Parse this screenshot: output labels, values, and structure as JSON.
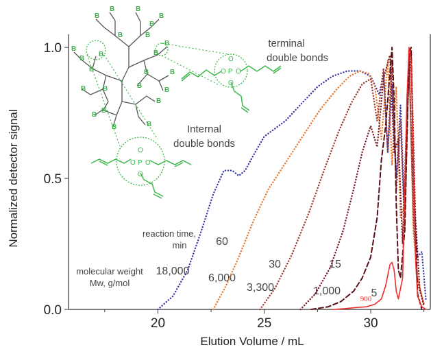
{
  "chart_data": {
    "type": "line",
    "xlabel": "Elution Volume / mL",
    "ylabel": "Normalized detector signal",
    "xlim": [
      15.8,
      32.8
    ],
    "ylim": [
      0,
      1.05
    ],
    "x_ticks": [
      "20",
      "25",
      "30"
    ],
    "y_ticks": [
      "0.0",
      "0.5",
      "1.0"
    ],
    "grid": false,
    "series": [
      {
        "color": "#3a3aa8",
        "style": "dotted",
        "x": [
          20.0,
          20.7,
          21.4,
          22.0,
          22.6,
          23.1,
          23.5,
          23.8,
          24.1,
          24.5,
          25.0,
          25.5,
          26.0,
          26.8,
          27.5,
          28.2,
          28.9,
          29.5,
          30.0,
          30.4,
          30.6,
          30.8,
          31.0,
          31.2,
          31.4,
          31.6,
          31.8,
          32.0,
          32.2,
          32.4,
          32.6
        ],
        "y": [
          0.0,
          0.05,
          0.15,
          0.29,
          0.44,
          0.53,
          0.53,
          0.51,
          0.53,
          0.59,
          0.66,
          0.69,
          0.72,
          0.79,
          0.85,
          0.89,
          0.91,
          0.91,
          0.89,
          0.82,
          0.9,
          0.6,
          0.86,
          0.5,
          0.78,
          0.35,
          0.95,
          0.4,
          0.2,
          0.22,
          0.03
        ]
      },
      {
        "color": "#e8782d",
        "style": "dotted",
        "x": [
          22.6,
          23.2,
          23.8,
          24.5,
          25.2,
          26.0,
          26.8,
          27.6,
          28.4,
          29.0,
          29.5,
          29.9,
          30.2,
          30.5,
          30.8,
          31.0,
          31.2,
          31.4,
          31.6,
          31.8,
          32.0,
          32.2,
          32.5
        ],
        "y": [
          0.0,
          0.09,
          0.2,
          0.34,
          0.46,
          0.56,
          0.66,
          0.76,
          0.84,
          0.89,
          0.91,
          0.9,
          0.85,
          0.65,
          0.95,
          0.55,
          0.85,
          0.35,
          0.4,
          0.99,
          0.3,
          0.12,
          0.02
        ]
      },
      {
        "color": "#9a3a2e",
        "style": "dotted",
        "x": [
          24.8,
          25.5,
          26.3,
          27.1,
          27.8,
          28.5,
          29.1,
          29.6,
          30.0,
          30.3,
          30.6,
          30.8,
          31.0,
          31.2,
          31.4,
          31.6,
          31.8,
          32.0,
          32.2,
          32.5
        ],
        "y": [
          0.0,
          0.08,
          0.21,
          0.37,
          0.53,
          0.68,
          0.79,
          0.86,
          0.88,
          0.72,
          0.92,
          0.6,
          0.95,
          0.45,
          0.72,
          0.3,
          0.99,
          0.35,
          0.1,
          0.02
        ]
      },
      {
        "color": "#7a1a22",
        "style": "dotted",
        "x": [
          26.7,
          27.4,
          28.1,
          28.7,
          29.2,
          29.6,
          30.0,
          30.3,
          30.6,
          30.9,
          31.1,
          31.3,
          31.5,
          31.7,
          31.9,
          32.1,
          32.3,
          32.5
        ],
        "y": [
          0.0,
          0.06,
          0.16,
          0.3,
          0.46,
          0.6,
          0.7,
          0.62,
          0.88,
          0.97,
          0.6,
          0.65,
          0.25,
          0.75,
          0.98,
          0.35,
          0.08,
          0.01
        ]
      },
      {
        "color": "#5a0f14",
        "style": "dashed",
        "x": [
          27.2,
          28.0,
          28.6,
          29.2,
          29.6,
          30.0,
          30.3,
          30.5,
          30.7,
          30.9,
          31.0,
          31.1,
          31.2,
          31.3,
          31.4,
          31.6,
          31.8,
          31.9,
          32.0,
          32.2,
          32.4
        ],
        "y": [
          0.0,
          0.01,
          0.03,
          0.07,
          0.12,
          0.2,
          0.35,
          0.57,
          0.7,
          0.9,
          1.0,
          0.8,
          0.4,
          0.15,
          0.12,
          0.3,
          0.98,
          1.0,
          0.55,
          0.06,
          0.0
        ]
      },
      {
        "color": "#ee2c2c",
        "style": "solid",
        "x": [
          28.2,
          28.8,
          29.3,
          29.8,
          30.2,
          30.5,
          30.7,
          30.9,
          31.0,
          31.1,
          31.2,
          31.3,
          31.5,
          31.6,
          31.7,
          31.8,
          31.9,
          32.0,
          32.1,
          32.2,
          32.4,
          32.6
        ],
        "y": [
          0.0,
          0.003,
          0.007,
          0.01,
          0.02,
          0.04,
          0.09,
          0.17,
          0.18,
          0.15,
          0.07,
          0.04,
          0.12,
          0.45,
          0.8,
          1.0,
          0.95,
          0.6,
          0.2,
          0.05,
          0.01,
          0.0
        ]
      }
    ],
    "annotations": {
      "reaction_time_header": [
        "reaction time,",
        "min"
      ],
      "reaction_times": [
        "60",
        "30",
        "15",
        "5"
      ],
      "mw_header": [
        "molecular weight",
        "Mw, g/mol"
      ],
      "mw_values": [
        "18,000",
        "6,000",
        "3,300",
        "1,000",
        "900"
      ],
      "terminal_label": [
        "terminal",
        "double bonds"
      ],
      "internal_label": [
        "Internal",
        "double bonds"
      ]
    },
    "molecule": {
      "atom_label": "B",
      "phosphate_labels": [
        "P",
        "O"
      ],
      "color": "#3cb84a"
    }
  }
}
